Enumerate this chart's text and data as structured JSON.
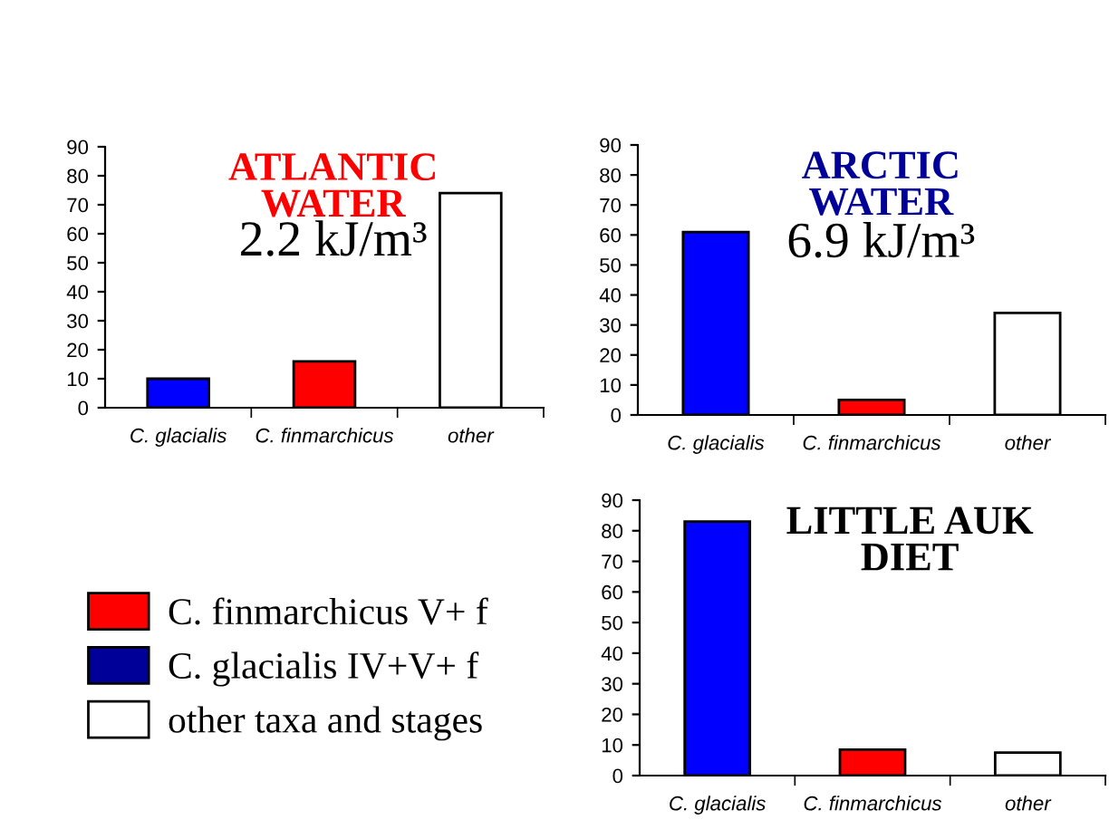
{
  "chart_data": [
    {
      "type": "bar",
      "title": "ATLANTIC\nWATER",
      "subtitle": "2.2 kJ/m³",
      "categories": [
        "C. glacialis",
        "C. finmarchicus",
        "other"
      ],
      "values": [
        10,
        16,
        74
      ],
      "colors": [
        "#0000ff",
        "#ff0000",
        "#ffffff"
      ],
      "ylim": [
        0,
        90
      ],
      "yticks": [
        0,
        10,
        20,
        30,
        40,
        50,
        60,
        70,
        80,
        90
      ],
      "grid": false,
      "legend": false
    },
    {
      "type": "bar",
      "title": "ARCTIC\nWATER",
      "subtitle": "6.9 kJ/m³",
      "categories": [
        "C. glacialis",
        "C. finmarchicus",
        "other"
      ],
      "values": [
        61,
        5,
        34
      ],
      "colors": [
        "#0000ff",
        "#ff0000",
        "#ffffff"
      ],
      "ylim": [
        0,
        90
      ],
      "yticks": [
        0,
        10,
        20,
        30,
        40,
        50,
        60,
        70,
        80,
        90
      ],
      "grid": false,
      "legend": false
    },
    {
      "type": "bar",
      "title": "LITTLE AUK\nDIET",
      "categories": [
        "C. glacialis",
        "C. finmarchicus",
        "other"
      ],
      "values": [
        83,
        8.5,
        7.5
      ],
      "colors": [
        "#0000ff",
        "#ff0000",
        "#ffffff"
      ],
      "ylim": [
        0,
        90
      ],
      "yticks": [
        0,
        10,
        20,
        30,
        40,
        50,
        60,
        70,
        80,
        90
      ],
      "grid": false,
      "legend": false
    },
    {
      "type": "other",
      "annotations": [
        "C. finmarchicus V+ f",
        "C. glacialis IV+V+ f",
        "other taxa and stages"
      ],
      "colors": [
        "#ff0000",
        "#000099",
        "#ffffff"
      ]
    }
  ]
}
